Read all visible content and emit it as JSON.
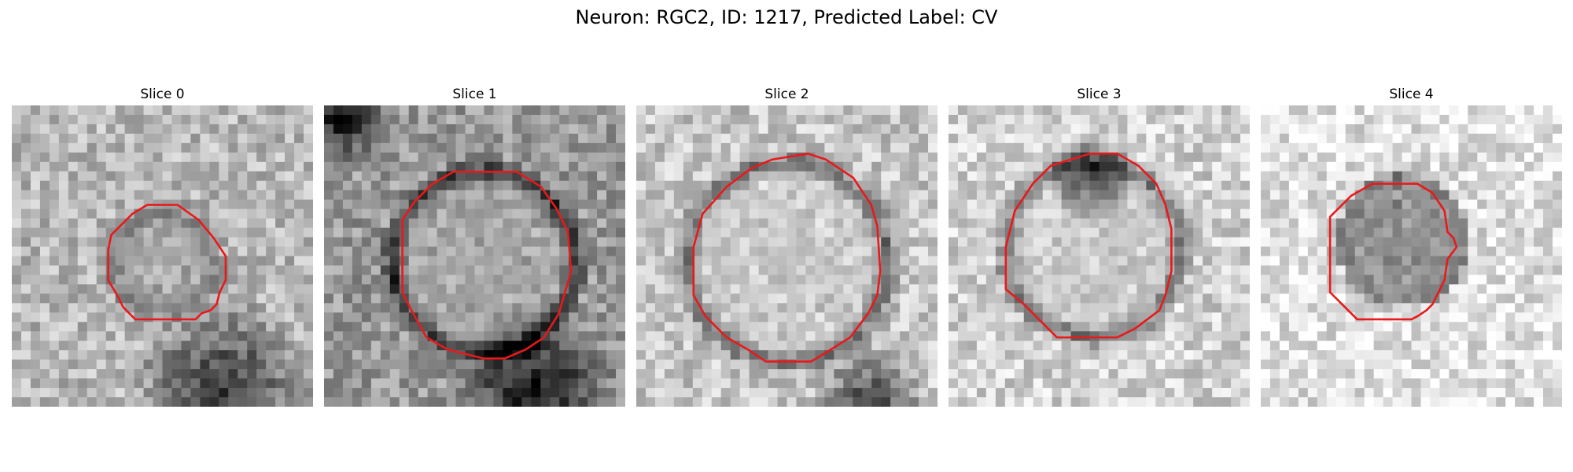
{
  "figure": {
    "title": "Neuron: RGC2, ID: 1217, Predicted Label: CV"
  },
  "colors": {
    "contour": "#e8191b",
    "background": "#ffffff"
  },
  "panels": [
    {
      "title": "Slice 0"
    },
    {
      "title": "Slice 1"
    },
    {
      "title": "Slice 2"
    },
    {
      "title": "Slice 3"
    },
    {
      "title": "Slice 4"
    }
  ]
}
